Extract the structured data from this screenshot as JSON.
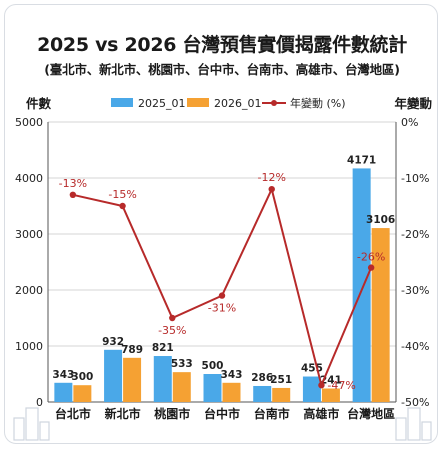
{
  "title": "2025 vs 2026 台灣預售實價揭露件數統計",
  "subtitle": "(臺北市、新北市、桃園市、台中市、台南市、高雄市、台灣地區)",
  "colors": {
    "bar_2025": "#4aa8e8",
    "bar_2026": "#f5a133",
    "line": "#b72a2a",
    "grid": "#d6d6d6",
    "axis_text": "#222222"
  },
  "icons": [
    "buildings-left-icon",
    "buildings-right-icon"
  ],
  "chart_data": {
    "type": "bar",
    "categories": [
      "台北市",
      "新北市",
      "桃園市",
      "台中市",
      "台南市",
      "高雄市",
      "台灣地區"
    ],
    "series": [
      {
        "name": "2025_01",
        "type": "bar",
        "values": [
          343,
          932,
          821,
          500,
          286,
          455,
          4171
        ]
      },
      {
        "name": "2026_01",
        "type": "bar",
        "values": [
          300,
          789,
          533,
          343,
          251,
          241,
          3106
        ]
      },
      {
        "name": "年變動 (%)",
        "type": "line",
        "axis": "right",
        "values": [
          -13,
          -15,
          -35,
          -31,
          -12,
          -47,
          -26
        ],
        "labels": [
          "-13%",
          "-15%",
          "-35%",
          "-31%",
          "-12%",
          "-47%",
          "-26%"
        ]
      }
    ],
    "ylabel": "件數",
    "y2label": "年變動",
    "ylim": [
      0,
      5000
    ],
    "y2lim": [
      -50,
      0
    ],
    "yticks": [
      "0",
      "1000",
      "2000",
      "3000",
      "4000",
      "5000"
    ],
    "y2ticks": [
      "0%",
      "-10%",
      "-20%",
      "-30%",
      "-40%",
      "-50%"
    ],
    "grid": true,
    "legend_position": "top-center"
  }
}
